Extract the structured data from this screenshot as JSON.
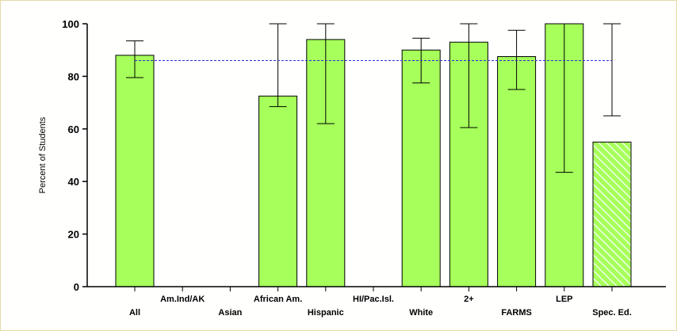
{
  "chart_data": {
    "type": "bar",
    "title": "",
    "xlabel": "",
    "ylabel": "Percent of Students",
    "ylim": [
      0,
      100
    ],
    "yticks": [
      0,
      20,
      40,
      60,
      80,
      100
    ],
    "categories": [
      "All",
      "Am.Ind/AK",
      "Asian",
      "African Am.",
      "Hispanic",
      "HI/Pac.Isl.",
      "White",
      "2+",
      "FARMS",
      "LEP",
      "Spec. Ed."
    ],
    "values": [
      88,
      null,
      null,
      72.5,
      94,
      null,
      90,
      93,
      87.5,
      100,
      55
    ],
    "error_low": [
      79.5,
      null,
      null,
      68.5,
      62,
      null,
      77.5,
      60.5,
      75,
      43.5,
      null
    ],
    "error_high": [
      93.5,
      null,
      null,
      100,
      100,
      null,
      94.5,
      100,
      97.5,
      100,
      100
    ],
    "error_low_only_marker": [
      null,
      null,
      null,
      null,
      null,
      null,
      null,
      null,
      null,
      null,
      65
    ],
    "hatched": [
      false,
      false,
      false,
      false,
      false,
      false,
      false,
      false,
      false,
      false,
      true
    ],
    "reference_line": 86,
    "colors": {
      "bar_fill": "#a6ff5a",
      "bar_stroke": "#000000",
      "reference_line": "#2b2bd6",
      "hatch_line": "#ffffff",
      "frame_border": "#e6d9a8"
    },
    "grid": false,
    "legend": "none"
  }
}
